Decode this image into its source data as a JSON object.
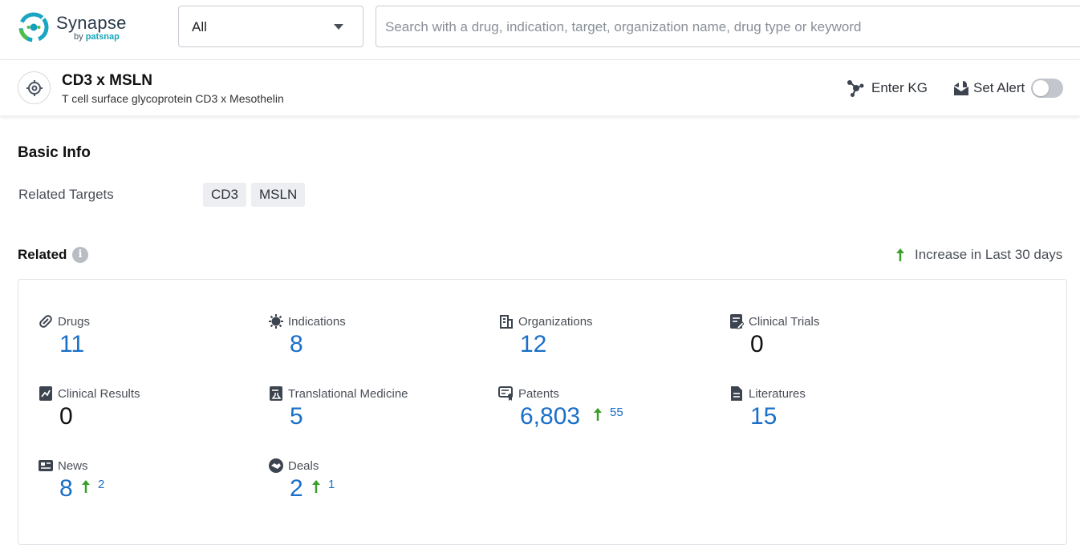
{
  "brand": {
    "name": "Synapse",
    "sub_prefix": "by ",
    "sub_brand": "patsnap"
  },
  "search": {
    "scope_value": "All",
    "placeholder": "Search with a drug, indication, target, organization name, drug type or keyword"
  },
  "header": {
    "title": "CD3 x MSLN",
    "subtitle": "T cell surface glycoprotein CD3 x Mesothelin",
    "enter_kg_label": "Enter KG",
    "set_alert_label": "Set Alert",
    "alert_enabled": false
  },
  "basic_info": {
    "title": "Basic Info",
    "related_targets_label": "Related Targets",
    "targets": [
      "CD3",
      "MSLN"
    ]
  },
  "related": {
    "title": "Related",
    "legend_label": "Increase in Last 30 days",
    "colors": {
      "accent": "#1a6fc9",
      "increase": "#3aa02a",
      "muted": "#4a4f57"
    },
    "stats": [
      {
        "icon": "pill-icon",
        "label": "Drugs",
        "value": "11"
      },
      {
        "icon": "virus-icon",
        "label": "Indications",
        "value": "8"
      },
      {
        "icon": "building-icon",
        "label": "Organizations",
        "value": "12"
      },
      {
        "icon": "clipboard-edit-icon",
        "label": "Clinical Trials",
        "value": "0"
      },
      {
        "icon": "chart-doc-icon",
        "label": "Clinical Results",
        "value": "0"
      },
      {
        "icon": "doc-flask-icon",
        "label": "Translational Medicine",
        "value": "5"
      },
      {
        "icon": "certificate-icon",
        "label": "Patents",
        "value": "6,803",
        "increase": "55"
      },
      {
        "icon": "document-icon",
        "label": "Literatures",
        "value": "15"
      },
      {
        "icon": "newspaper-icon",
        "label": "News",
        "value": "8",
        "increase": "2"
      },
      {
        "icon": "handshake-icon",
        "label": "Deals",
        "value": "2",
        "increase": "1"
      }
    ]
  }
}
